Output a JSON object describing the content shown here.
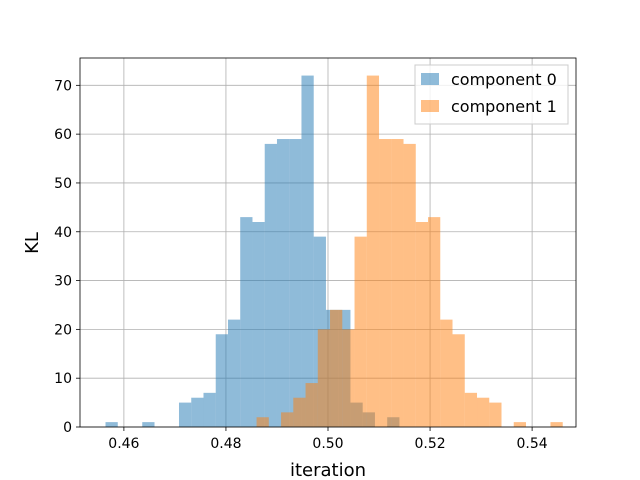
{
  "chart_data": {
    "type": "bar",
    "title": "",
    "xlabel": "iteration",
    "ylabel": "KL",
    "xlim": [
      0.4514,
      0.5486
    ],
    "ylim": [
      0,
      75.6
    ],
    "bin_width": 0.0024,
    "grid": true,
    "legend_position": "top-right",
    "x_ticks": [
      0.46,
      0.48,
      0.5,
      0.52,
      0.54
    ],
    "x_tick_labels": [
      "0.46",
      "0.48",
      "0.50",
      "0.52",
      "0.54"
    ],
    "y_ticks": [
      0,
      10,
      20,
      30,
      40,
      50,
      60,
      70
    ],
    "y_tick_labels": [
      "0",
      "10",
      "20",
      "30",
      "40",
      "50",
      "60",
      "70"
    ],
    "series": [
      {
        "name": "component 0",
        "color": "#1f77b4",
        "opacity": 0.5,
        "bins": [
          {
            "x": 0.4564,
            "count": 1
          },
          {
            "x": 0.4588,
            "count": 0
          },
          {
            "x": 0.4612,
            "count": 0
          },
          {
            "x": 0.4636,
            "count": 1
          },
          {
            "x": 0.466,
            "count": 0
          },
          {
            "x": 0.4684,
            "count": 0
          },
          {
            "x": 0.4708,
            "count": 5
          },
          {
            "x": 0.4732,
            "count": 6
          },
          {
            "x": 0.4756,
            "count": 7
          },
          {
            "x": 0.478,
            "count": 19
          },
          {
            "x": 0.4804,
            "count": 22
          },
          {
            "x": 0.4828,
            "count": 43
          },
          {
            "x": 0.4852,
            "count": 42
          },
          {
            "x": 0.4876,
            "count": 58
          },
          {
            "x": 0.49,
            "count": 59
          },
          {
            "x": 0.4924,
            "count": 59
          },
          {
            "x": 0.4948,
            "count": 72
          },
          {
            "x": 0.4972,
            "count": 39
          },
          {
            "x": 0.4996,
            "count": 24
          },
          {
            "x": 0.502,
            "count": 24
          },
          {
            "x": 0.5044,
            "count": 5
          },
          {
            "x": 0.5068,
            "count": 3
          },
          {
            "x": 0.5092,
            "count": 0
          },
          {
            "x": 0.5116,
            "count": 2
          }
        ]
      },
      {
        "name": "component 1",
        "color": "#ff7f0e",
        "opacity": 0.5,
        "bins": [
          {
            "x": 0.486,
            "count": 2
          },
          {
            "x": 0.4884,
            "count": 0
          },
          {
            "x": 0.4908,
            "count": 3
          },
          {
            "x": 0.4932,
            "count": 6
          },
          {
            "x": 0.4956,
            "count": 9
          },
          {
            "x": 0.498,
            "count": 20
          },
          {
            "x": 0.5004,
            "count": 24
          },
          {
            "x": 0.5028,
            "count": 20
          },
          {
            "x": 0.5052,
            "count": 39
          },
          {
            "x": 0.5076,
            "count": 72
          },
          {
            "x": 0.51,
            "count": 59
          },
          {
            "x": 0.5124,
            "count": 59
          },
          {
            "x": 0.5148,
            "count": 58
          },
          {
            "x": 0.5172,
            "count": 42
          },
          {
            "x": 0.5196,
            "count": 43
          },
          {
            "x": 0.522,
            "count": 22
          },
          {
            "x": 0.5244,
            "count": 19
          },
          {
            "x": 0.5268,
            "count": 7
          },
          {
            "x": 0.5292,
            "count": 6
          },
          {
            "x": 0.5316,
            "count": 5
          },
          {
            "x": 0.534,
            "count": 0
          },
          {
            "x": 0.5364,
            "count": 1
          },
          {
            "x": 0.5388,
            "count": 0
          },
          {
            "x": 0.5412,
            "count": 0
          },
          {
            "x": 0.5436,
            "count": 1
          }
        ]
      }
    ]
  }
}
